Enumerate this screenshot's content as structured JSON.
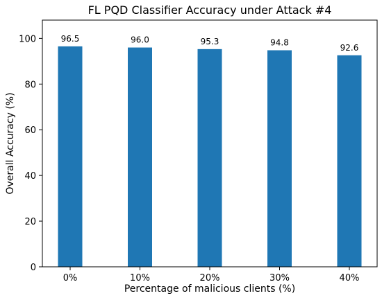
{
  "chart_data": {
    "type": "bar",
    "title": "FL PQD Classifier Accuracy under Attack #4",
    "xlabel": "Percentage of malicious clients (%)",
    "ylabel": "Overall Accuracy (%)",
    "categories": [
      "0%",
      "10%",
      "20%",
      "30%",
      "40%"
    ],
    "values": [
      96.5,
      96.0,
      95.3,
      94.8,
      92.6
    ],
    "value_labels": [
      "96.5",
      "96.0",
      "95.3",
      "94.8",
      "92.6"
    ],
    "ylim": [
      0,
      108
    ],
    "yticks": [
      0,
      20,
      40,
      60,
      80,
      100
    ],
    "bar_color": "#1f77b4",
    "grid": false
  }
}
